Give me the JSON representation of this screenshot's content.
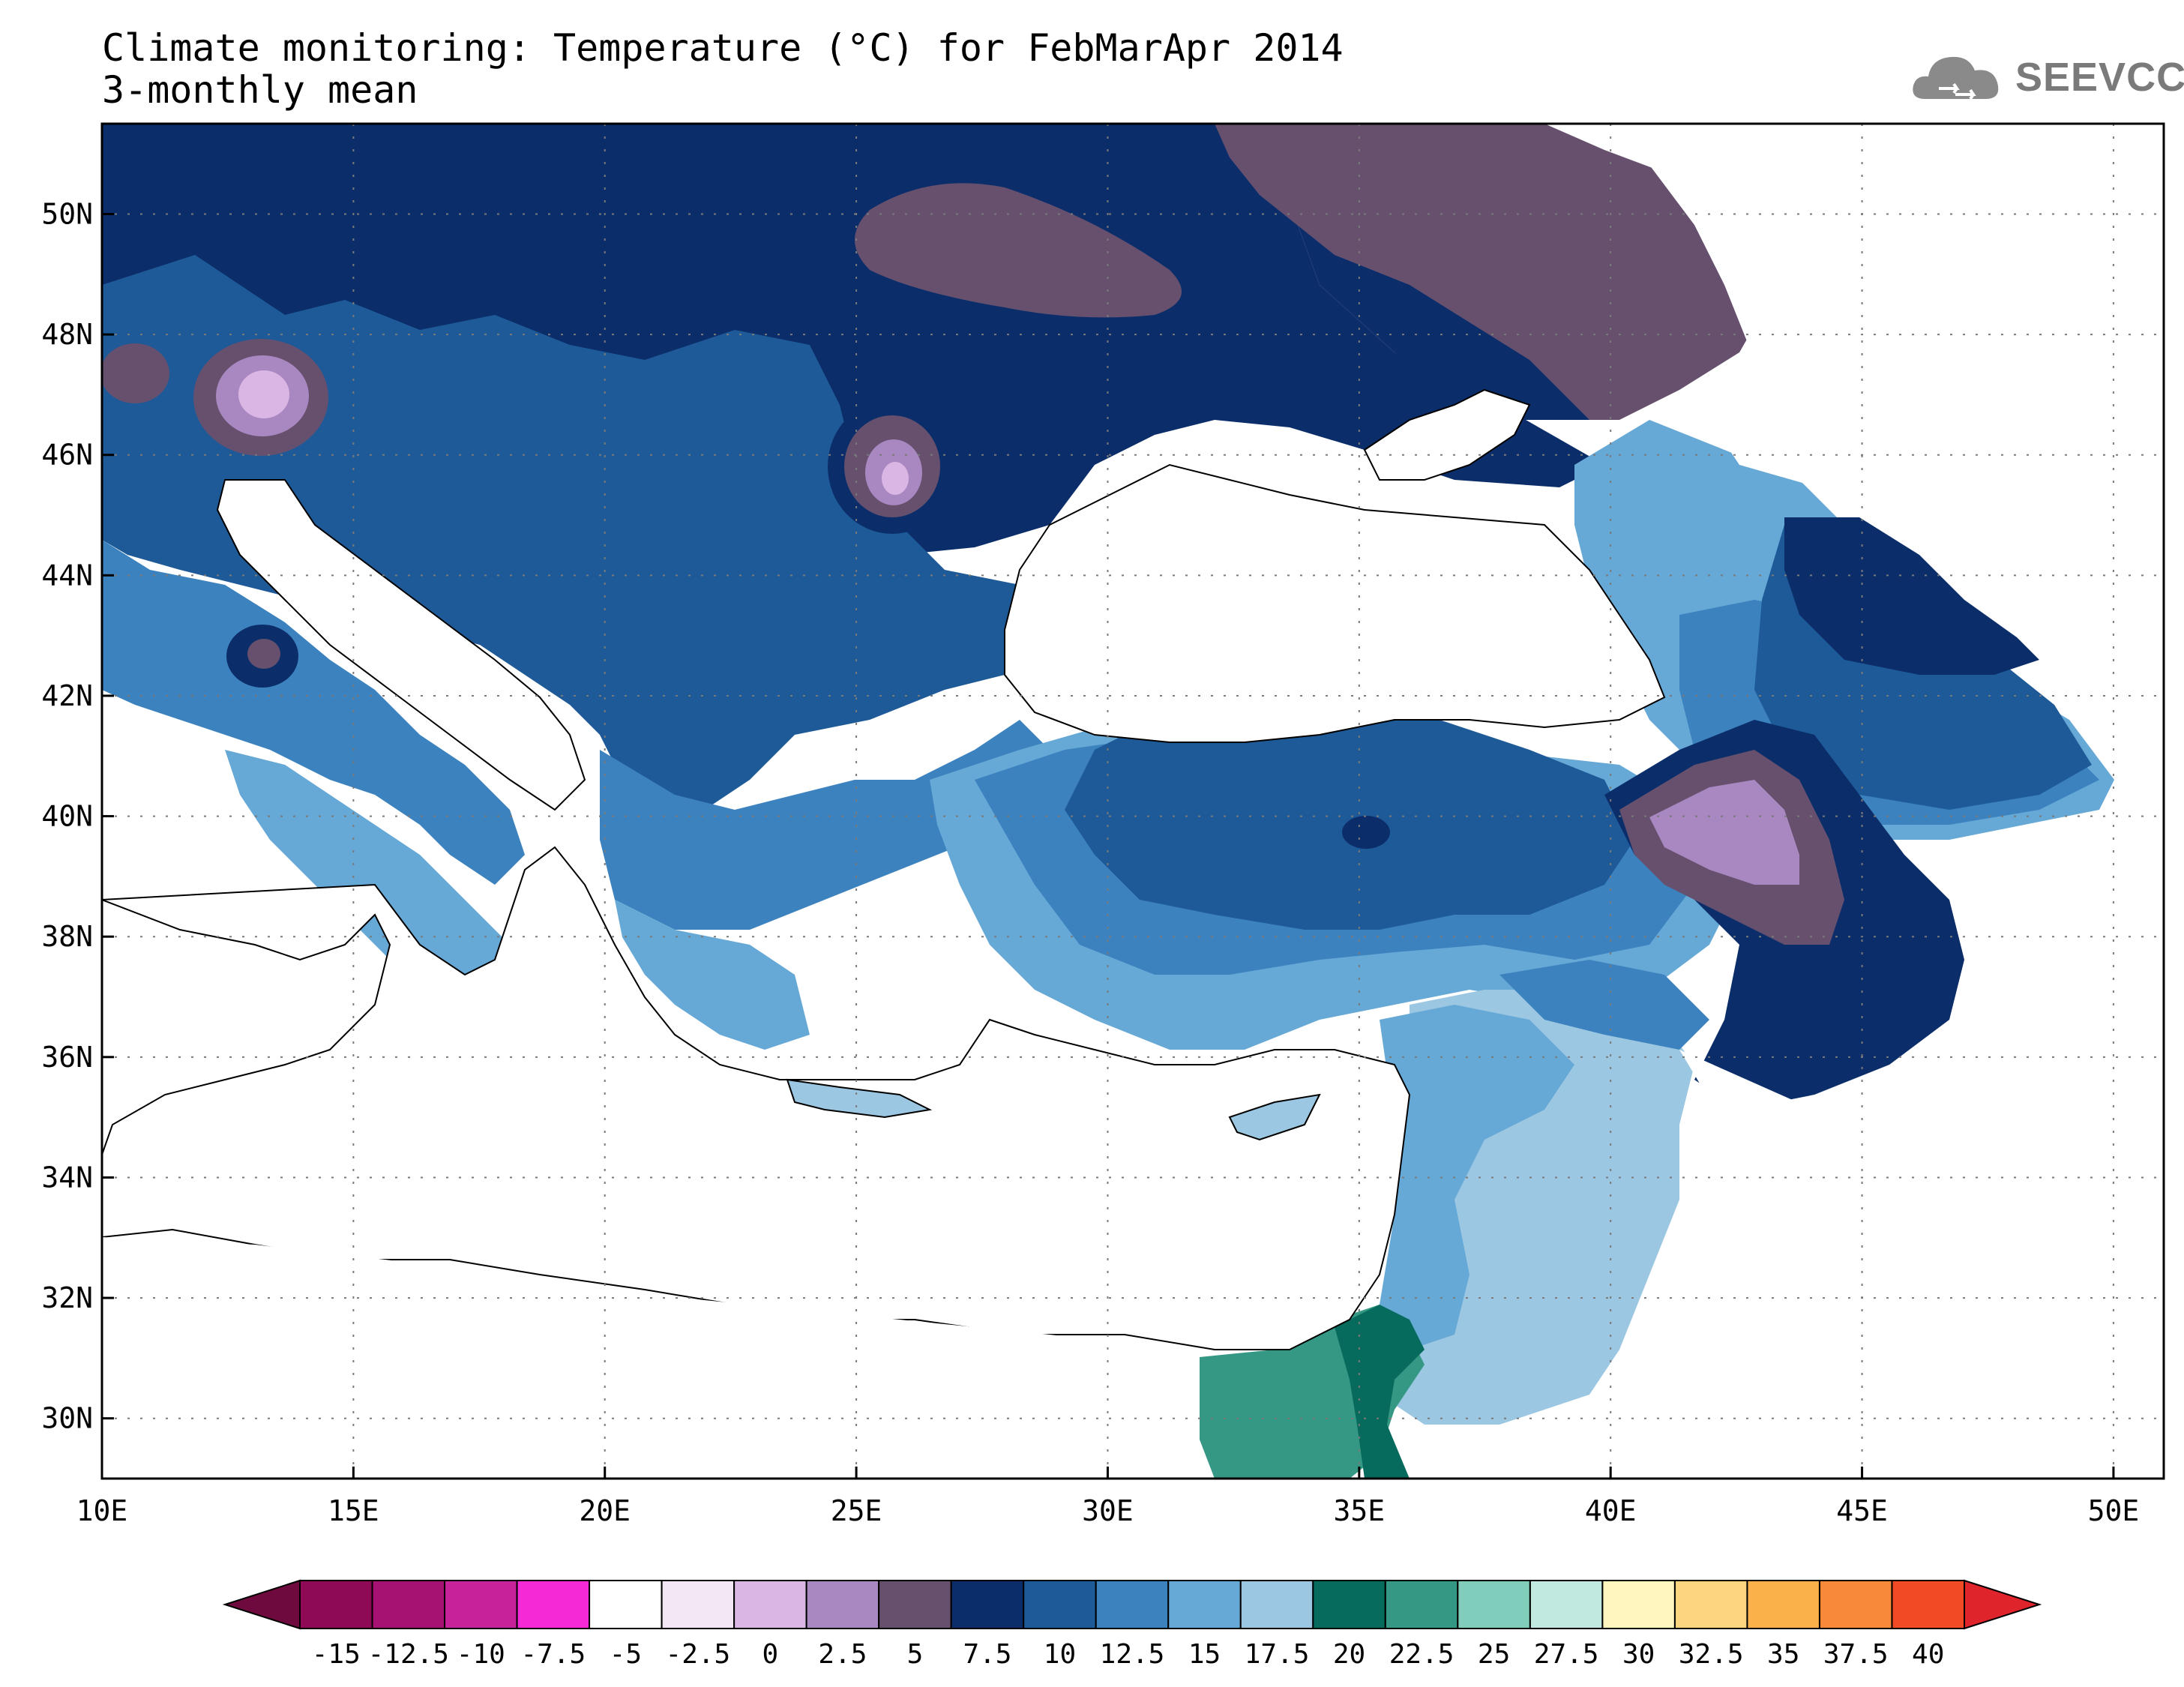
{
  "title": {
    "line1": "Climate monitoring: Temperature (°C) for FebMarApr 2014",
    "line2": "3-monthly mean"
  },
  "logo": {
    "text": "SEEVCCC",
    "icon": "cloud-icon"
  },
  "map": {
    "lon_ticks": [
      "10E",
      "15E",
      "20E",
      "25E",
      "30E",
      "35E",
      "40E",
      "45E",
      "50E"
    ],
    "lat_ticks": [
      "30N",
      "32N",
      "34N",
      "36N",
      "38N",
      "40N",
      "42N",
      "44N",
      "46N",
      "48N",
      "50N"
    ],
    "lon_range": [
      10,
      51
    ],
    "lat_range": [
      29,
      51.5
    ]
  },
  "legend": {
    "labels": [
      "-15",
      "-12.5",
      "-10",
      "-7.5",
      "-5",
      "-2.5",
      "0",
      "2.5",
      "5",
      "7.5",
      "10",
      "12.5",
      "15",
      "17.5",
      "20",
      "22.5",
      "25",
      "27.5",
      "30",
      "32.5",
      "35",
      "37.5",
      "40"
    ],
    "colors": [
      "#8e0a56",
      "#a61272",
      "#c8229a",
      "#f52ad6",
      "#ffffff",
      "#f3e6f5",
      "#d9b6e3",
      "#a987c0",
      "#66506e",
      "#0b2e6b",
      "#1e5a98",
      "#3b82be",
      "#66a8d6",
      "#9cc7e2",
      "#066a5c",
      "#349885",
      "#7fcdba",
      "#c1e9e0",
      "#fff6bf",
      "#fdd57e",
      "#fbb14a",
      "#f88938",
      "#f14a25"
    ],
    "low_arrow_color": "#6e0a3e",
    "high_arrow_color": "#e0242c"
  }
}
